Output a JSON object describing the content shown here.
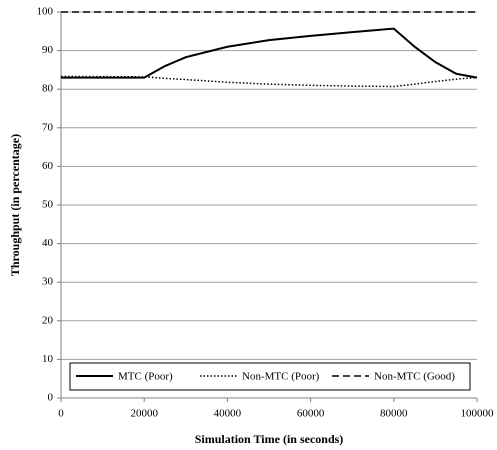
{
  "chart_data": {
    "type": "line",
    "x_label": "Simulation Time (in seconds)",
    "y_label": "Throughput (in percentage)",
    "x": [
      0,
      20000,
      25000,
      30000,
      40000,
      50000,
      60000,
      70000,
      80000,
      85000,
      90000,
      95000,
      100000
    ],
    "series": [
      {
        "name": "MTC (Poor)",
        "color": "#000000",
        "style": "solid",
        "values": [
          83,
          83,
          86,
          88.3,
          91,
          92.7,
          93.8,
          94.8,
          95.7,
          91,
          87,
          84,
          83
        ]
      },
      {
        "name": "Non-MTC (Poor)",
        "color": "#000000",
        "style": "dotted",
        "values": [
          83.3,
          83.2,
          82.8,
          82.5,
          81.8,
          81.3,
          81,
          80.8,
          80.7,
          81.3,
          82,
          82.6,
          83
        ]
      },
      {
        "name": "Non-MTC (Good)",
        "color": "#000000",
        "style": "dashed",
        "values": [
          100,
          100,
          100,
          100,
          100,
          100,
          100,
          100,
          100,
          100,
          100,
          100,
          100
        ]
      }
    ],
    "xlim": [
      0,
      100000
    ],
    "xticks": [
      0,
      20000,
      40000,
      60000,
      80000,
      100000
    ],
    "ylim": [
      0,
      100
    ],
    "yticks": [
      0,
      10,
      20,
      30,
      40,
      50,
      60,
      70,
      80,
      90,
      100
    ],
    "grid": true,
    "legend": "bottom"
  }
}
